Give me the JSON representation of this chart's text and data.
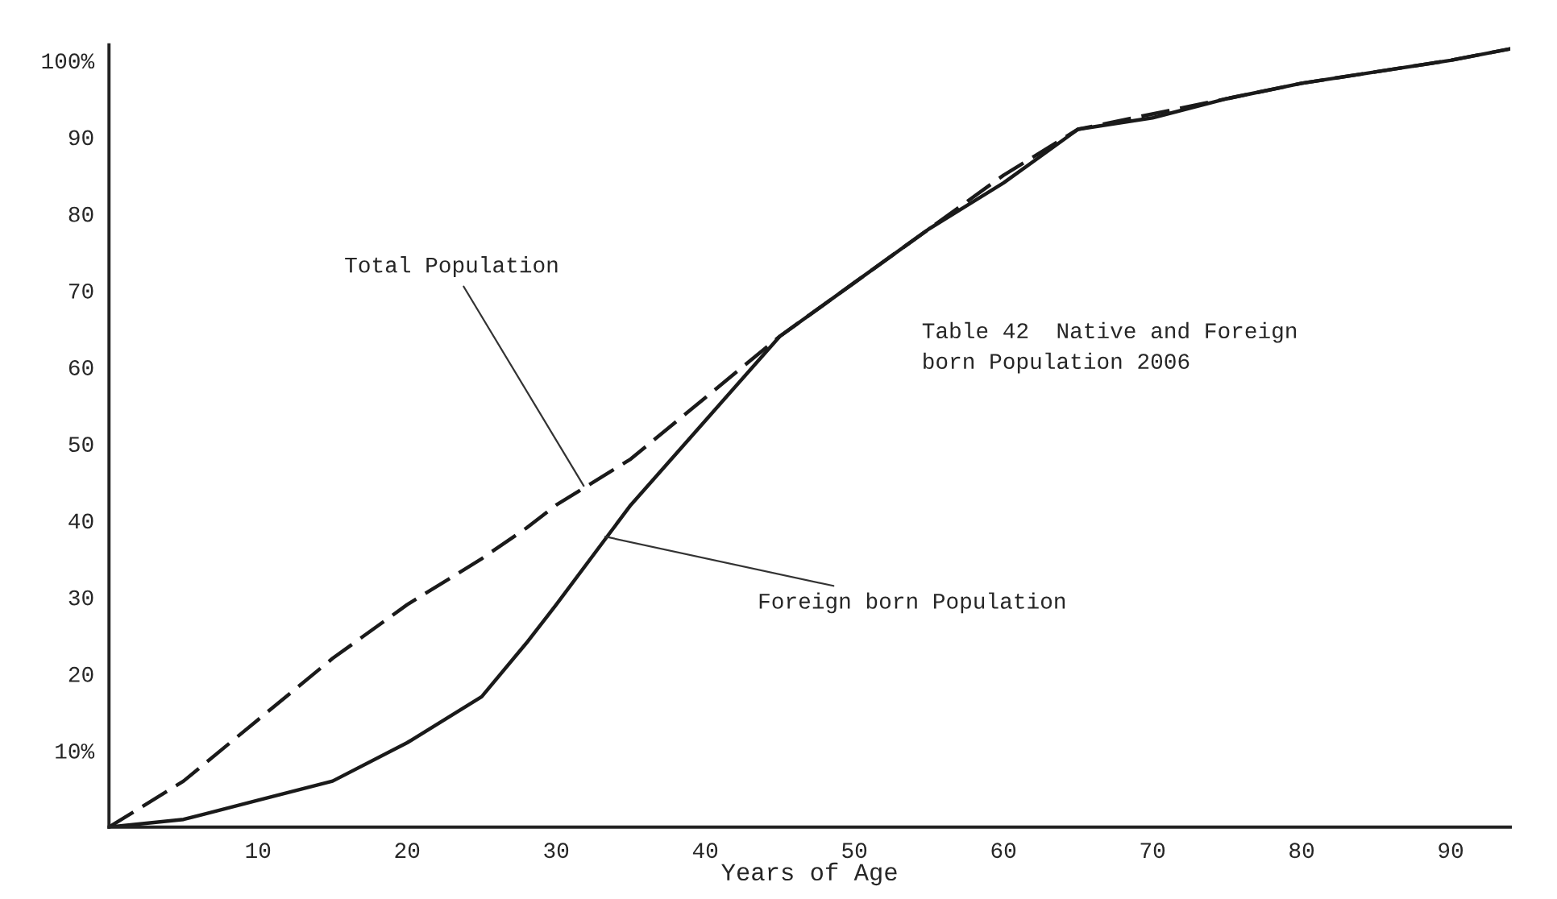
{
  "chart_data": {
    "type": "line",
    "title": "Table 42  Native and Foreign\nborn Population 2006",
    "xlabel": "Years of Age",
    "x": [
      0,
      5,
      10,
      15,
      20,
      25,
      28,
      30,
      35,
      40,
      45,
      50,
      55,
      60,
      65,
      70,
      75,
      80,
      85,
      90,
      94
    ],
    "series": [
      {
        "color": "#1a1a1a",
        "line_style": "dashed",
        "values": [
          0,
          6,
          14,
          22,
          29,
          35,
          39,
          42,
          48,
          56,
          64,
          71,
          78,
          85,
          91,
          93,
          95,
          97,
          98.5,
          100,
          101.5
        ]
      },
      {
        "color": "#1a1a1a",
        "line_style": "solid",
        "values": [
          0,
          1,
          3.5,
          6,
          11,
          17,
          24,
          29,
          42,
          53,
          64,
          71,
          78,
          84,
          91,
          92.5,
          95,
          97,
          98.5,
          100,
          101.5
        ]
      }
    ],
    "annotations": [
      {
        "text": "Total Population",
        "x": 32,
        "y": 44
      },
      {
        "text": "Foreign born Population",
        "x": 33,
        "y": 38
      }
    ],
    "xlim": [
      0,
      94
    ],
    "ylim": [
      0,
      102
    ],
    "xticks": [
      10,
      20,
      30,
      40,
      50,
      60,
      70,
      80,
      90
    ],
    "yticks": [
      {
        "value": 10,
        "label": "10%"
      },
      20,
      30,
      40,
      50,
      60,
      70,
      80,
      90,
      {
        "value": 100,
        "label": "100%"
      }
    ],
    "grid": false,
    "legend": false,
    "marker": "none"
  }
}
